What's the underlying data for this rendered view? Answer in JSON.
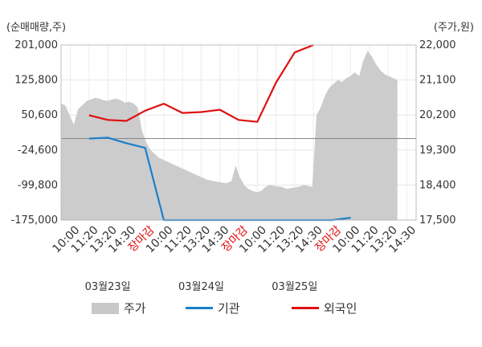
{
  "chart_data": {
    "type": "line",
    "left_axis_label": "(순매매량,주)",
    "right_axis_label": "(주가,원)",
    "left_ylim": [
      -175000,
      201000
    ],
    "right_ylim": [
      17500,
      22000
    ],
    "left_ticks": [
      "201,000",
      "125,800",
      "50,600",
      "-24,600",
      "-99,800",
      "-175,000"
    ],
    "left_tick_values": [
      201000,
      125800,
      50600,
      -24600,
      -99800,
      -175000
    ],
    "right_ticks": [
      "22,000",
      "21,100",
      "20,200",
      "19,300",
      "18,400",
      "17,500"
    ],
    "right_tick_values": [
      22000,
      21100,
      20200,
      19300,
      18400,
      17500
    ],
    "zero_line_value": 0,
    "x_ticks": [
      {
        "label": "10:00",
        "red": false
      },
      {
        "label": "11:20",
        "red": false
      },
      {
        "label": "13:20",
        "red": false
      },
      {
        "label": "14:30",
        "red": false
      },
      {
        "label": "장마감",
        "red": true
      },
      {
        "label": "10:00",
        "red": false
      },
      {
        "label": "11:20",
        "red": false
      },
      {
        "label": "13:20",
        "red": false
      },
      {
        "label": "14:30",
        "red": false
      },
      {
        "label": "장마감",
        "red": true
      },
      {
        "label": "10:00",
        "red": false
      },
      {
        "label": "11:20",
        "red": false
      },
      {
        "label": "13:20",
        "red": false
      },
      {
        "label": "14:30",
        "red": false
      },
      {
        "label": "장마감",
        "red": true
      },
      {
        "label": "10:00",
        "red": false
      },
      {
        "label": "11:20",
        "red": false
      },
      {
        "label": "13:20",
        "red": false
      },
      {
        "label": "14:30",
        "red": false
      }
    ],
    "dates": [
      "03월23일",
      "03월24일",
      "03월25일"
    ],
    "series": [
      {
        "name": "기관",
        "color": "#1a7fcb",
        "x": [
          1,
          2,
          3,
          4,
          5,
          6,
          7,
          8,
          9,
          10,
          11,
          12,
          13,
          14,
          15
        ],
        "values": [
          0,
          2000,
          -10000,
          -20000,
          -175000,
          -175000,
          -175000,
          -175000,
          -175000,
          -175000,
          -175000,
          -175000,
          -175000,
          -175000,
          -170000
        ]
      },
      {
        "name": "외국인",
        "color": "#e01010",
        "x": [
          1,
          2,
          3,
          4,
          5,
          6,
          7,
          8,
          9,
          10,
          11,
          12,
          13,
          14,
          15
        ],
        "values": [
          50000,
          40000,
          38000,
          60000,
          75000,
          55000,
          57000,
          62000,
          40000,
          36000,
          120000,
          185000,
          201000,
          null,
          null
        ]
      }
    ],
    "price_series": {
      "name": "주가",
      "color": "#cccccc",
      "x_range": [
        0,
        18
      ],
      "values": [
        20500,
        20450,
        20200,
        19950,
        20350,
        20450,
        20560,
        20600,
        20640,
        20620,
        20580,
        20560,
        20600,
        20620,
        20580,
        20520,
        20540,
        20500,
        20400,
        19800,
        19500,
        19300,
        19200,
        19100,
        19050,
        19000,
        18950,
        18900,
        18850,
        18800,
        18750,
        18700,
        18650,
        18600,
        18550,
        18520,
        18500,
        18480,
        18460,
        18450,
        18500,
        18900,
        18600,
        18400,
        18300,
        18250,
        18220,
        18250,
        18350,
        18400,
        18380,
        18360,
        18350,
        18300,
        18320,
        18340,
        18360,
        18400,
        18380,
        18350,
        20200,
        20400,
        20700,
        20900,
        21000,
        21100,
        21050,
        21150,
        21200,
        21300,
        21200,
        21600,
        21850,
        21700,
        21500,
        21350,
        21250,
        21200,
        21150,
        21100
      ]
    }
  },
  "legend": {
    "price_label": "주가",
    "institution_label": "기관",
    "foreign_label": "외국인",
    "price_color": "#c8c8c8",
    "institution_color": "#1a7fcb",
    "foreign_color": "#e01010"
  },
  "axes": {
    "left_label": "(순매매량,주)",
    "right_label": "(주가,원)"
  }
}
